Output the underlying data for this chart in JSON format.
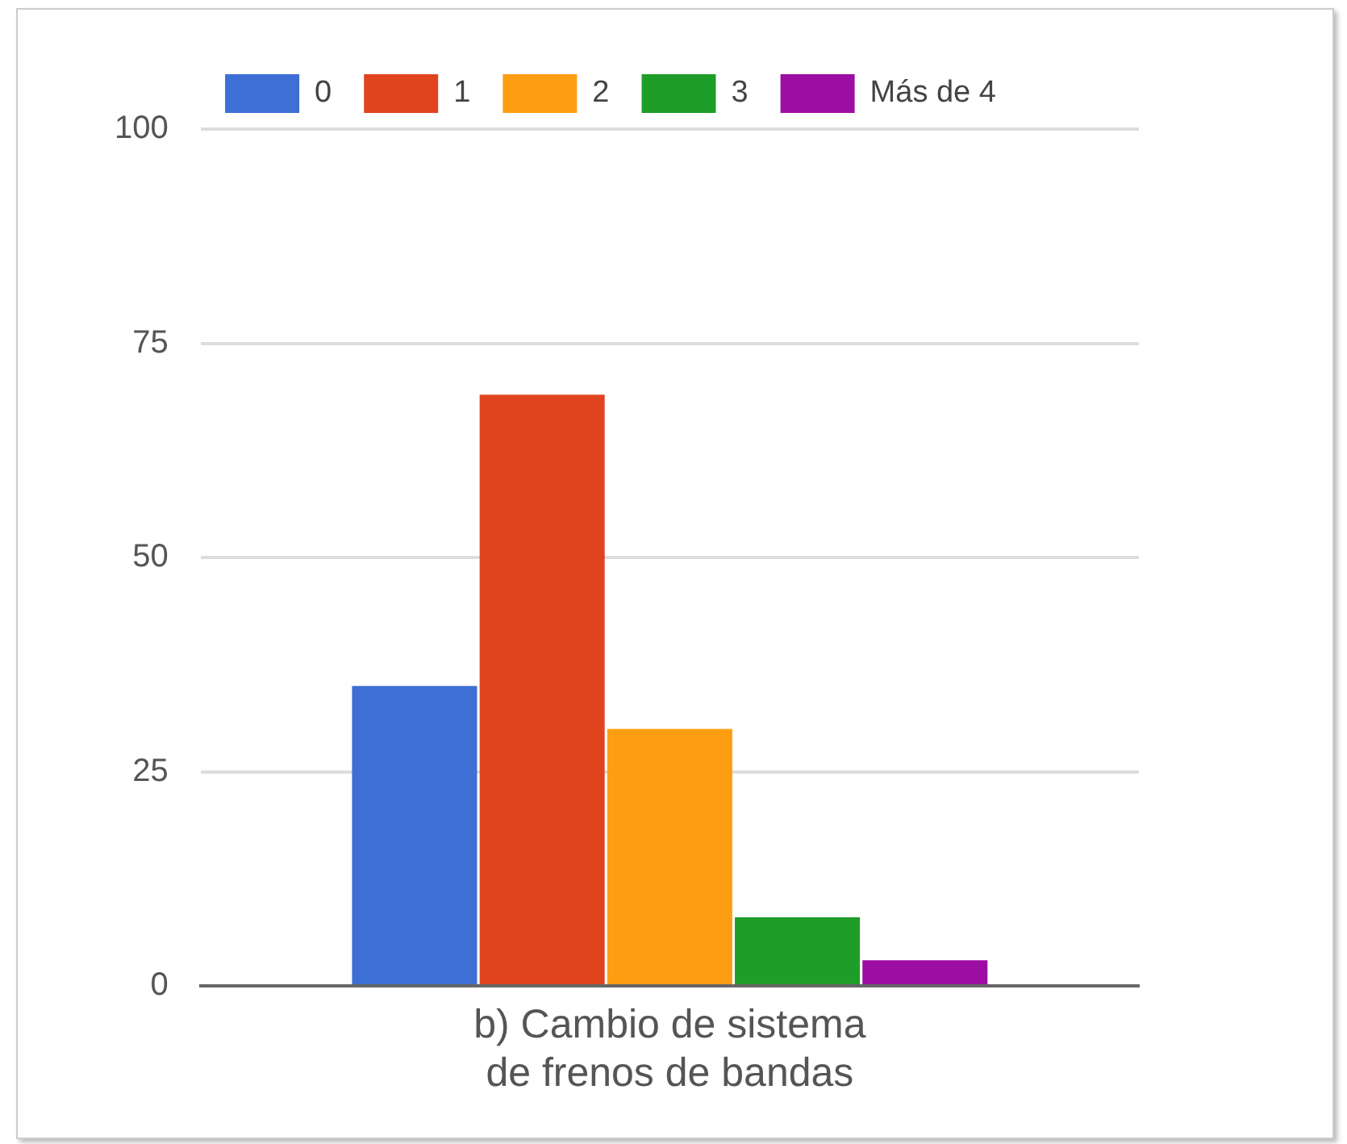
{
  "chart_data": {
    "type": "bar",
    "categories": [
      "b) Cambio de sistema de frenos de bandas"
    ],
    "series": [
      {
        "name": "0",
        "color": "#3d6fd4",
        "values": [
          35
        ]
      },
      {
        "name": "1",
        "color": "#e0441e",
        "values": [
          69
        ]
      },
      {
        "name": "2",
        "color": "#fd9e12",
        "values": [
          30
        ]
      },
      {
        "name": "3",
        "color": "#1f9d29",
        "values": [
          8
        ]
      },
      {
        "name": "Más de 4",
        "color": "#9b0da3",
        "values": [
          3
        ]
      }
    ],
    "ylim": [
      0,
      100
    ],
    "yticks": [
      0,
      25,
      50,
      75,
      100
    ],
    "grid": "y",
    "legend": "top"
  }
}
